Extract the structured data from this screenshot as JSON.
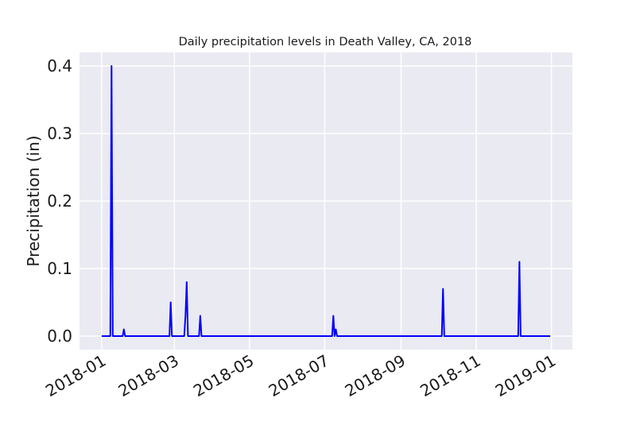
{
  "chart_data": {
    "type": "line",
    "title": "Daily precipitation levels in Death Valley, CA, 2018",
    "xlabel": "",
    "ylabel": "Precipitation (in)",
    "xlim": [
      "2017-12-14",
      "2019-01-18"
    ],
    "ylim": [
      -0.02,
      0.42
    ],
    "grid": true,
    "x_ticks": [
      "2018-01",
      "2018-03",
      "2018-05",
      "2018-07",
      "2018-09",
      "2018-11",
      "2019-01"
    ],
    "y_ticks": [
      "0.0",
      "0.1",
      "0.2",
      "0.3",
      "0.4"
    ],
    "colors": {
      "line": "#0000ff",
      "plot_background": "#eaeaf2",
      "grid": "#ffffff"
    },
    "series": [
      {
        "points": [
          [
            "2018-01-01",
            0.0
          ],
          [
            "2018-01-06",
            0.0
          ],
          [
            "2018-01-07",
            0.0
          ],
          [
            "2018-01-08",
            0.0
          ],
          [
            "2018-01-09",
            0.4
          ],
          [
            "2018-01-10",
            0.0
          ],
          [
            "2018-01-18",
            0.0
          ],
          [
            "2018-01-19",
            0.01
          ],
          [
            "2018-01-20",
            0.0
          ],
          [
            "2018-02-25",
            0.0
          ],
          [
            "2018-02-26",
            0.05
          ],
          [
            "2018-02-27",
            0.0
          ],
          [
            "2018-03-09",
            0.0
          ],
          [
            "2018-03-10",
            0.03
          ],
          [
            "2018-03-11",
            0.08
          ],
          [
            "2018-03-12",
            0.0
          ],
          [
            "2018-03-21",
            0.0
          ],
          [
            "2018-03-22",
            0.03
          ],
          [
            "2018-03-23",
            0.0
          ],
          [
            "2018-07-07",
            0.0
          ],
          [
            "2018-07-08",
            0.03
          ],
          [
            "2018-07-09",
            0.0
          ],
          [
            "2018-07-10",
            0.01
          ],
          [
            "2018-07-11",
            0.0
          ],
          [
            "2018-10-04",
            0.0
          ],
          [
            "2018-10-05",
            0.07
          ],
          [
            "2018-10-06",
            0.0
          ],
          [
            "2018-12-05",
            0.0
          ],
          [
            "2018-12-06",
            0.11
          ],
          [
            "2018-12-07",
            0.0
          ],
          [
            "2018-12-31",
            0.0
          ]
        ]
      }
    ]
  }
}
